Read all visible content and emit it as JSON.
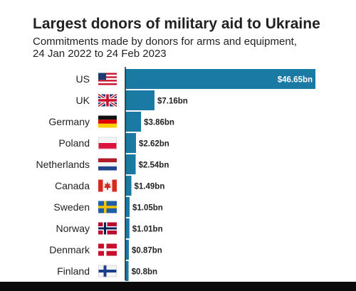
{
  "chart": {
    "title": "Largest donors of military aid to Ukraine",
    "subtitle_line1": "Commitments made by donors for arms and equipment,",
    "subtitle_line2": "24 Jan 2022 to 24 Feb 2023"
  },
  "colors": {
    "bar": "#1b7aa3",
    "axis": "#222222",
    "label": "#222222",
    "value_inside": "#ffffff",
    "value_outside": "#222222"
  },
  "chart_data": {
    "type": "bar",
    "orientation": "horizontal",
    "title": "Largest donors of military aid to Ukraine",
    "subtitle": "Commitments made by donors for arms and equipment, 24 Jan 2022 to 24 Feb 2023",
    "categories": [
      "US",
      "UK",
      "Germany",
      "Poland",
      "Netherlands",
      "Canada",
      "Sweden",
      "Norway",
      "Denmark",
      "Finland"
    ],
    "values": [
      46.65,
      7.16,
      3.86,
      2.62,
      2.54,
      1.49,
      1.05,
      1.01,
      0.87,
      0.8
    ],
    "data_labels": [
      "$46.65bn",
      "$7.16bn",
      "$3.86bn",
      "$2.62bn",
      "$2.54bn",
      "$1.49bn",
      "$1.05bn",
      "$1.01bn",
      "$0.87bn",
      "$0.8bn"
    ],
    "flags": [
      "us-flag-icon",
      "uk-flag-icon",
      "germany-flag-icon",
      "poland-flag-icon",
      "netherlands-flag-icon",
      "canada-flag-icon",
      "sweden-flag-icon",
      "norway-flag-icon",
      "denmark-flag-icon",
      "finland-flag-icon"
    ],
    "xlim": [
      0,
      46.65
    ],
    "grid": false,
    "legend": "none"
  }
}
